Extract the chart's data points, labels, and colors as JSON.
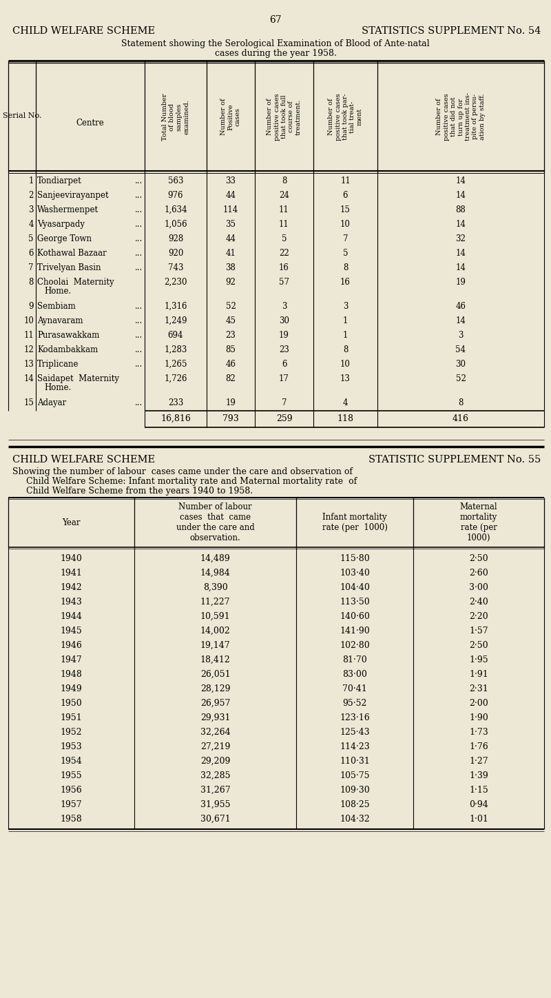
{
  "bg_color": "#ede8d5",
  "page_number": "67",
  "table1": {
    "title1": "CHILD WELFARE SCHEME",
    "title2": "STATISTICS SUPPLEMENT No. 54",
    "subtitle_line1": "Statement showing the Serological Examination of Blood of Ante-natal",
    "subtitle_line2": "cases during the year 1958.",
    "col_headers_rotated": [
      "Total Number\nof blood\nsamples\nexamined.",
      "Number of\nPositive\ncases",
      "Number of\npositive cases\nthat took full\ncourse of\ntreatment.",
      "Number of\npositive cases\nthat took par-\ntial treat-\nment",
      "Number of\npositive cases\nthat did not\nturn up for\ntreatment ins-\npite of persu-\nation by staff."
    ],
    "rows": [
      [
        1,
        "Tondiarpet",
        "...",
        "563",
        "33",
        "8",
        "11",
        "14"
      ],
      [
        2,
        "Sanjeevirayanpet",
        "...",
        "976",
        "44",
        "24",
        "6",
        "14"
      ],
      [
        3,
        "Washermenpet",
        "...",
        "1,634",
        "114",
        "11",
        "15",
        "88"
      ],
      [
        4,
        "Vyasarpady",
        "...",
        "1,056",
        "35",
        "11",
        "10",
        "14"
      ],
      [
        5,
        "George Town",
        "...",
        "928",
        "44",
        "5",
        "7",
        "32"
      ],
      [
        6,
        "Kothawal Bazaar",
        "...",
        "920",
        "41",
        "22",
        "5",
        "14"
      ],
      [
        7,
        "Trivelyan Basin",
        "...",
        "743",
        "38",
        "16",
        "8",
        "14"
      ],
      [
        8,
        "Choolai  Maternity",
        "Home.",
        "2,230",
        "92",
        "57",
        "16",
        "19"
      ],
      [
        9,
        "Sembiam",
        "...",
        "1,316",
        "52",
        "3",
        "3",
        "46"
      ],
      [
        10,
        "Aynavaram",
        "...",
        "1,249",
        "45",
        "30",
        "1",
        "14"
      ],
      [
        11,
        "Purasawakkam",
        "...",
        "694",
        "23",
        "19",
        "1",
        "3"
      ],
      [
        12,
        "Kodambakkam",
        "...",
        "1,283",
        "85",
        "23",
        "8",
        "54"
      ],
      [
        13,
        "Triplicane",
        "...",
        "1,265",
        "46",
        "6",
        "10",
        "30"
      ],
      [
        14,
        "Saidapet  Maternity",
        "Home.",
        "1,726",
        "82",
        "17",
        "13",
        "52"
      ],
      [
        15,
        "Adayar",
        "...",
        "233",
        "19",
        "7",
        "4",
        "8"
      ]
    ],
    "totals": [
      "16,816",
      "793",
      "259",
      "118",
      "416"
    ]
  },
  "table2": {
    "title1": "CHILD WELFARE SCHEME",
    "title2": "STATISTIC SUPPLEMENT No. 55",
    "subtitle_line1": "Showing the number of labour  cases came under the care and observation of",
    "subtitle_line2": "Child Welfare Scheme: Infant mortality rate and Maternal mortality rate  of",
    "subtitle_line3": "Child Welfare Scheme from the years 1940 to 1958.",
    "col_headers": [
      "Year",
      "Number of labour\ncases  that  came\nunder the care and\nobservation.",
      "Infant mortality\nrate (per  1000)",
      "Maternal\nmortality\nrate (per\n1000)"
    ],
    "rows": [
      [
        "1940",
        "14,489",
        "115·80",
        "2·50"
      ],
      [
        "1941",
        "14,984",
        "103·40",
        "2·60"
      ],
      [
        "1942",
        "8,390",
        "104·40",
        "3·00"
      ],
      [
        "1943",
        "11,227",
        "113·50",
        "2·40"
      ],
      [
        "1944",
        "10,591",
        "140·60",
        "2·20"
      ],
      [
        "1945",
        "14,002",
        "141·90",
        "1·57"
      ],
      [
        "1946",
        "19,147",
        "102·80",
        "2·50"
      ],
      [
        "1947",
        "18,412",
        "81·70",
        "1·95"
      ],
      [
        "1948",
        "26,051",
        "83·00",
        "1·91"
      ],
      [
        "1949",
        "28,129",
        "70·41",
        "2·31"
      ],
      [
        "1950",
        "26,957",
        "95·52",
        "2·00"
      ],
      [
        "1951",
        "29,931",
        "123·16",
        "1·90"
      ],
      [
        "1952",
        "32,264",
        "125·43",
        "1·73"
      ],
      [
        "1953",
        "27,219",
        "114·23",
        "1·76"
      ],
      [
        "1954",
        "29,209",
        "110·31",
        "1·27"
      ],
      [
        "1955",
        "32,285",
        "105·75",
        "1·39"
      ],
      [
        "1956",
        "31,267",
        "109·30",
        "1·15"
      ],
      [
        "1957",
        "31,955",
        "108·25",
        "0·94"
      ],
      [
        "1958",
        "30,671",
        "104·32",
        "1·01"
      ]
    ]
  }
}
